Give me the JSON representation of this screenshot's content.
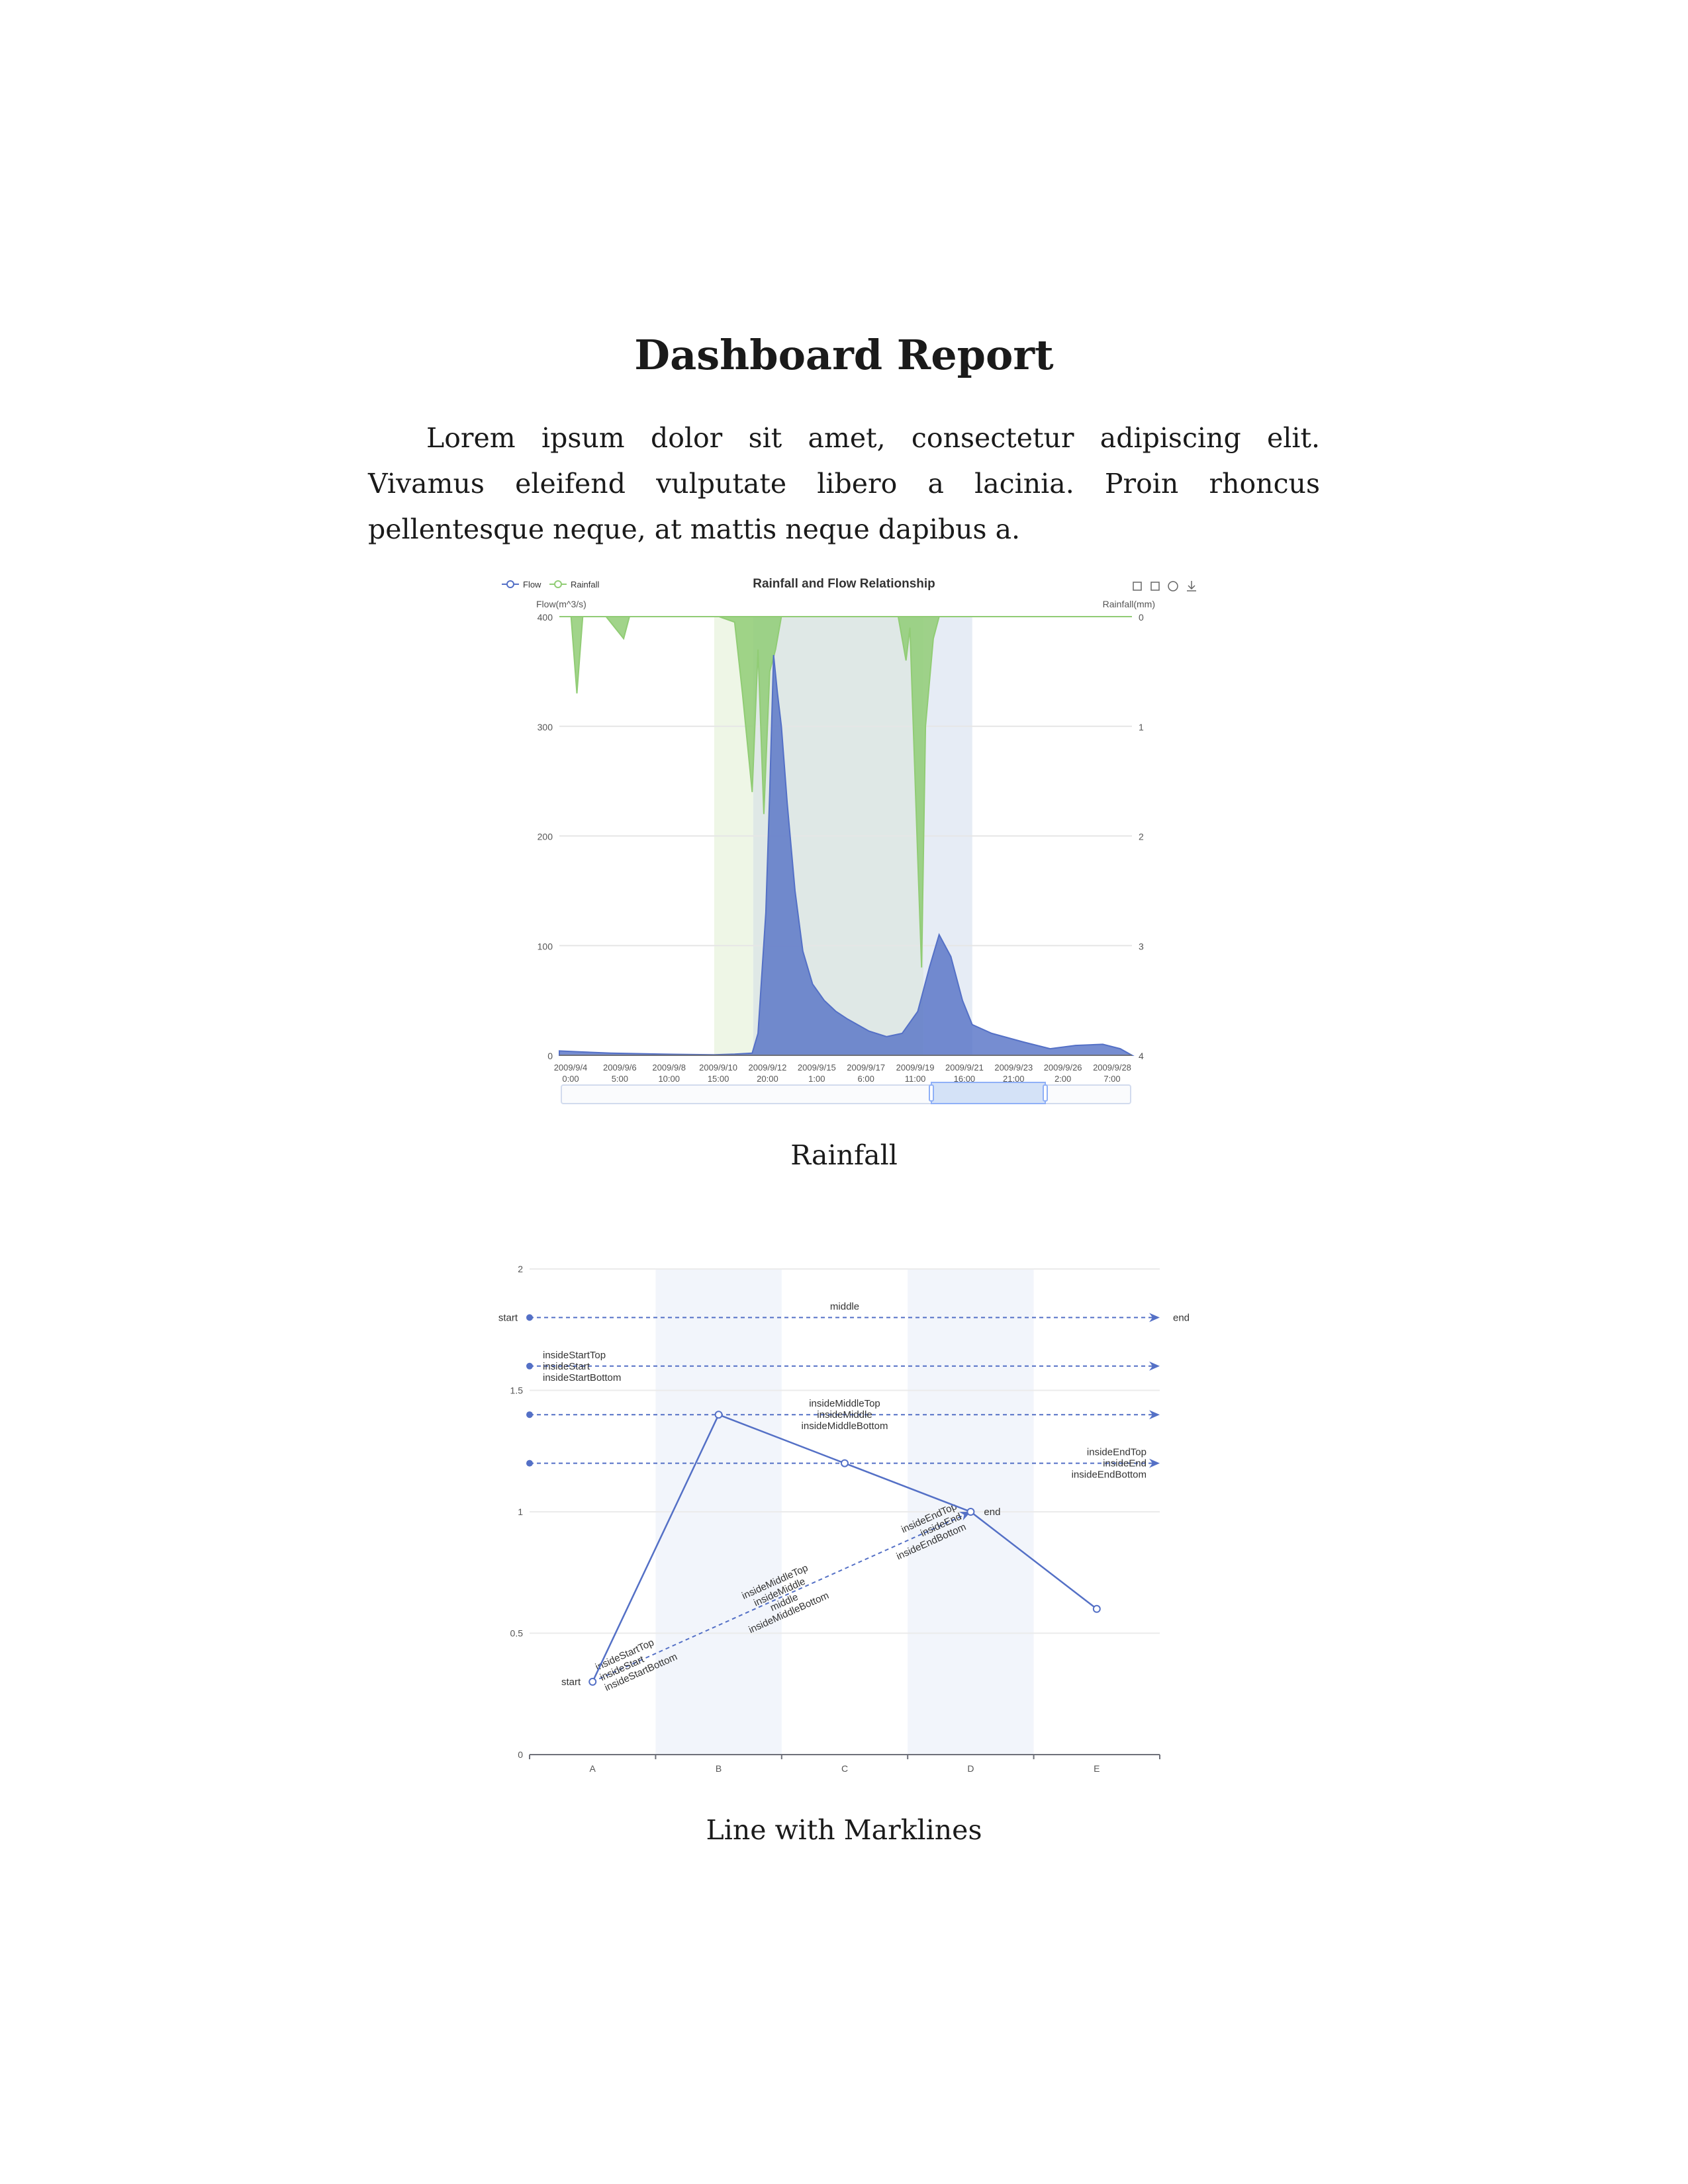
{
  "document": {
    "title": "Dashboard Report",
    "intro": "Lorem ipsum dolor sit amet, consectetur adipiscing elit. Vivamus eleifend vulputate libero a lacinia. Proin rhoncus pellentesque neque, at mattis neque dapibus a.",
    "caption1": "Rainfall",
    "caption2": "Line with Marklines"
  },
  "chart_data": [
    {
      "type": "area",
      "title": "Rainfall and Flow Relationship",
      "legend": [
        "Flow",
        "Rainfall"
      ],
      "legend_position": "top-left",
      "toolbox_icons": [
        "zoom-icon",
        "zoom-reset-icon",
        "restore-icon",
        "save-image-icon"
      ],
      "y_left": {
        "label": "Flow(m^3/s)",
        "range": [
          0,
          400
        ],
        "ticks": [
          "0",
          "100",
          "200",
          "300",
          "400"
        ]
      },
      "y_right": {
        "label": "Rainfall(mm)",
        "range": [
          0,
          4
        ],
        "inverse": true,
        "ticks": [
          "0",
          "1",
          "2",
          "3",
          "4"
        ]
      },
      "x_axis_labels": [
        [
          "2009/9/4",
          "0:00"
        ],
        [
          "2009/9/6",
          "5:00"
        ],
        [
          "2009/9/8",
          "10:00"
        ],
        [
          "2009/9/10",
          "15:00"
        ],
        [
          "2009/9/12",
          "20:00"
        ],
        [
          "2009/9/15",
          "1:00"
        ],
        [
          "2009/9/17",
          "6:00"
        ],
        [
          "2009/9/19",
          "11:00"
        ],
        [
          "2009/9/21",
          "16:00"
        ],
        [
          "2009/9/23",
          "21:00"
        ],
        [
          "2009/9/26",
          "2:00"
        ],
        [
          "2009/9/28",
          "7:00"
        ]
      ],
      "shaded_ranges": [
        {
          "from": "2009/9/10 15:00",
          "to": "2009/9/12 7:00",
          "color": "#eef6e6"
        },
        {
          "from": "2009/9/12 7:00",
          "to": "2009/9/19 14:00",
          "color": "#dfe8e6"
        },
        {
          "from": "2009/9/19 14:00",
          "to": "2009/9/21 16:00",
          "color": "#e6ecf5"
        }
      ],
      "series": [
        {
          "name": "Flow",
          "color": "#5470c6",
          "points": [
            [
              "2009/9/4 0:00",
              4
            ],
            [
              "2009/9/5 0:00",
              3
            ],
            [
              "2009/9/6 5:00",
              2
            ],
            [
              "2009/9/8 10:00",
              1
            ],
            [
              "2009/9/10 15:00",
              0.5
            ],
            [
              "2009/9/11 12:00",
              1
            ],
            [
              "2009/9/12 6:00",
              2
            ],
            [
              "2009/9/12 12:00",
              20
            ],
            [
              "2009/9/12 20:00",
              130
            ],
            [
              "2009/9/13 0:00",
              240
            ],
            [
              "2009/9/13 4:00",
              365
            ],
            [
              "2009/9/13 8:00",
              330
            ],
            [
              "2009/9/13 12:00",
              300
            ],
            [
              "2009/9/13 18:00",
              230
            ],
            [
              "2009/9/14 2:00",
              150
            ],
            [
              "2009/9/14 10:00",
              95
            ],
            [
              "2009/9/14 20:00",
              65
            ],
            [
              "2009/9/15 8:00",
              50
            ],
            [
              "2009/9/15 20:00",
              40
            ],
            [
              "2009/9/16 8:00",
              33
            ],
            [
              "2009/9/17 6:00",
              22
            ],
            [
              "2009/9/18 0:00",
              17
            ],
            [
              "2009/9/18 16:00",
              20
            ],
            [
              "2009/9/19 8:00",
              40
            ],
            [
              "2009/9/19 20:00",
              80
            ],
            [
              "2009/9/20 6:00",
              110
            ],
            [
              "2009/9/20 18:00",
              90
            ],
            [
              "2009/9/21 6:00",
              50
            ],
            [
              "2009/9/21 16:00",
              28
            ],
            [
              "2009/9/22 12:00",
              20
            ],
            [
              "2009/9/23 21:00",
              12
            ],
            [
              "2009/9/25 0:00",
              6
            ],
            [
              "2009/9/26 2:00",
              9
            ],
            [
              "2009/9/27 6:00",
              10
            ],
            [
              "2009/9/28 0:00",
              6
            ],
            [
              "2009/9/28 12:00",
              0
            ]
          ]
        },
        {
          "name": "Rainfall",
          "color": "#91cc75",
          "points": [
            [
              "2009/9/4 0:00",
              0
            ],
            [
              "2009/9/4 12:00",
              0
            ],
            [
              "2009/9/4 18:00",
              0.7
            ],
            [
              "2009/9/5 0:00",
              0
            ],
            [
              "2009/9/6 0:00",
              0
            ],
            [
              "2009/9/6 18:00",
              0.2
            ],
            [
              "2009/9/7 0:00",
              0
            ],
            [
              "2009/9/10 20:00",
              0
            ],
            [
              "2009/9/11 12:00",
              0.05
            ],
            [
              "2009/9/11 20:00",
              0.7
            ],
            [
              "2009/9/12 6:00",
              1.6
            ],
            [
              "2009/9/12 12:00",
              0.3
            ],
            [
              "2009/9/12 18:00",
              1.8
            ],
            [
              "2009/9/13 0:00",
              0.5
            ],
            [
              "2009/9/13 6:00",
              0.3
            ],
            [
              "2009/9/13 12:00",
              0
            ],
            [
              "2009/9/18 12:00",
              0
            ],
            [
              "2009/9/18 20:00",
              0.4
            ],
            [
              "2009/9/19 0:00",
              0.1
            ],
            [
              "2009/9/19 8:00",
              2.2
            ],
            [
              "2009/9/19 12:00",
              3.2
            ],
            [
              "2009/9/19 16:00",
              1.0
            ],
            [
              "2009/9/20 0:00",
              0.2
            ],
            [
              "2009/9/20 6:00",
              0
            ],
            [
              "2009/9/28 12:00",
              0
            ]
          ]
        }
      ],
      "data_zoom": {
        "start": 0.65,
        "end": 0.85
      }
    },
    {
      "type": "line",
      "categories": [
        "A",
        "B",
        "C",
        "D",
        "E"
      ],
      "ylim": [
        0,
        2
      ],
      "y_ticks": [
        "0",
        "0.5",
        "1",
        "1.5",
        "2"
      ],
      "series": [
        {
          "color": "#5470c6",
          "values": [
            0.3,
            1.4,
            1.2,
            1,
            0.6
          ]
        }
      ],
      "shaded_categories": [
        "B",
        "D"
      ],
      "mark_lines": [
        {
          "y": 1.8,
          "label_start": "start",
          "label_middle": "middle",
          "label_end": "end"
        },
        {
          "y": 1.6,
          "labels": [
            "insideStartTop",
            "insideStart",
            "insideStartBottom"
          ],
          "position": "start"
        },
        {
          "y": 1.4,
          "labels": [
            "insideMiddleTop",
            "insideMiddle",
            "insideMiddleBottom"
          ],
          "position": "middle"
        },
        {
          "y": 1.2,
          "labels": [
            "insideEndTop",
            "insideEnd",
            "insideEndBottom"
          ],
          "position": "end"
        },
        {
          "from": [
            "A",
            0.3
          ],
          "to": [
            "D",
            1
          ],
          "label_start": "start",
          "label_end": "end",
          "labels_start": [
            "insideStartTop",
            "insideStart",
            "insideStartBottom"
          ],
          "labels_middle": [
            "insideMiddleTop",
            "insideMiddle",
            "middle",
            "insideMiddleBottom"
          ],
          "labels_end": [
            "insideEndTop",
            "insideEnd",
            "insideEndBottom"
          ]
        }
      ]
    }
  ]
}
